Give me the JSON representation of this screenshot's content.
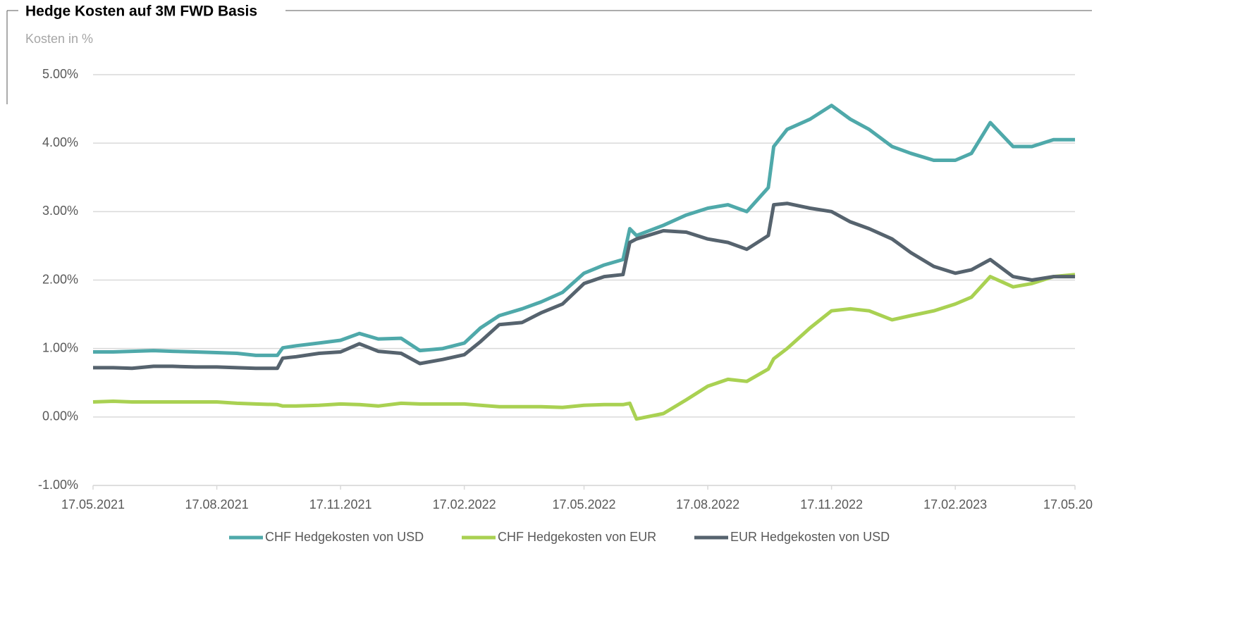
{
  "chart_data": {
    "type": "line",
    "title": "Hedge Kosten auf 3M FWD Basis",
    "subtitle": "Kosten in %",
    "x": [
      "17.05.2021",
      "01.06.2021",
      "15.06.2021",
      "01.07.2021",
      "15.07.2021",
      "01.08.2021",
      "17.08.2021",
      "01.09.2021",
      "15.09.2021",
      "01.10.2021",
      "05.10.2021",
      "15.10.2021",
      "01.11.2021",
      "17.11.2021",
      "01.12.2021",
      "15.12.2021",
      "01.01.2022",
      "15.01.2022",
      "01.02.2022",
      "17.02.2022",
      "01.03.2022",
      "15.03.2022",
      "01.04.2022",
      "15.04.2022",
      "01.05.2022",
      "17.05.2022",
      "01.06.2022",
      "15.06.2022",
      "20.06.2022",
      "25.06.2022",
      "15.07.2022",
      "01.08.2022",
      "17.08.2022",
      "01.09.2022",
      "15.09.2022",
      "01.10.2022",
      "05.10.2022",
      "15.10.2022",
      "01.11.2022",
      "17.11.2022",
      "01.12.2022",
      "15.12.2022",
      "01.01.2023",
      "15.01.2023",
      "01.02.2023",
      "17.02.2023",
      "01.03.2023",
      "15.03.2023",
      "01.04.2023",
      "15.04.2023",
      "01.05.2023",
      "17.05.2023"
    ],
    "series": [
      {
        "name": "CHF Hedgekosten von USD",
        "color": "#4fa9aa",
        "values": [
          0.95,
          0.95,
          0.96,
          0.97,
          0.96,
          0.95,
          0.94,
          0.93,
          0.9,
          0.9,
          1.01,
          1.04,
          1.08,
          1.12,
          1.22,
          1.14,
          1.15,
          0.97,
          1.0,
          1.08,
          1.3,
          1.48,
          1.58,
          1.68,
          1.82,
          2.1,
          2.22,
          2.3,
          2.75,
          2.65,
          2.8,
          2.95,
          3.05,
          3.1,
          3.0,
          3.35,
          3.95,
          4.2,
          4.35,
          4.55,
          4.35,
          4.2,
          3.95,
          3.85,
          3.75,
          3.75,
          3.85,
          4.3,
          3.95,
          3.95,
          4.05,
          4.05
        ]
      },
      {
        "name": "CHF Hedgekosten von EUR",
        "color": "#a9d152",
        "values": [
          0.22,
          0.23,
          0.22,
          0.22,
          0.22,
          0.22,
          0.22,
          0.2,
          0.19,
          0.18,
          0.16,
          0.16,
          0.17,
          0.19,
          0.18,
          0.16,
          0.2,
          0.19,
          0.19,
          0.19,
          0.17,
          0.15,
          0.15,
          0.15,
          0.14,
          0.17,
          0.18,
          0.18,
          0.2,
          -0.03,
          0.05,
          0.25,
          0.45,
          0.55,
          0.52,
          0.7,
          0.85,
          1.0,
          1.3,
          1.55,
          1.58,
          1.55,
          1.42,
          1.48,
          1.55,
          1.65,
          1.75,
          2.05,
          1.9,
          1.95,
          2.05,
          2.08
        ]
      },
      {
        "name": "EUR Hedgekosten von USD",
        "color": "#56636e",
        "values": [
          0.72,
          0.72,
          0.71,
          0.74,
          0.74,
          0.73,
          0.73,
          0.72,
          0.71,
          0.71,
          0.86,
          0.88,
          0.93,
          0.95,
          1.07,
          0.96,
          0.93,
          0.78,
          0.84,
          0.91,
          1.1,
          1.35,
          1.38,
          1.52,
          1.65,
          1.95,
          2.05,
          2.08,
          2.55,
          2.6,
          2.72,
          2.7,
          2.6,
          2.55,
          2.45,
          2.65,
          3.1,
          3.12,
          3.05,
          3.0,
          2.85,
          2.75,
          2.6,
          2.4,
          2.2,
          2.1,
          2.15,
          2.3,
          2.05,
          2.0,
          2.05,
          2.05
        ]
      }
    ],
    "xlim": [
      "17.05.2021",
      "17.05.2023"
    ],
    "xticks": [
      "17.05.2021",
      "17.08.2021",
      "17.11.2021",
      "17.02.2022",
      "17.05.2022",
      "17.08.2022",
      "17.11.2022",
      "17.02.2023",
      {
        "value": "17.05.2023",
        "label": "17.05.20"
      }
    ],
    "ylim": [
      -1,
      5
    ],
    "yticks": [
      {
        "value": -1,
        "label": "-1.00%"
      },
      {
        "value": 0,
        "label": "0.00%"
      },
      {
        "value": 1,
        "label": "1.00%"
      },
      {
        "value": 2,
        "label": "2.00%"
      },
      {
        "value": 3,
        "label": "3.00%"
      },
      {
        "value": 4,
        "label": "4.00%"
      },
      {
        "value": 5,
        "label": "5.00%"
      }
    ],
    "grid": true,
    "legend": "bottom"
  }
}
